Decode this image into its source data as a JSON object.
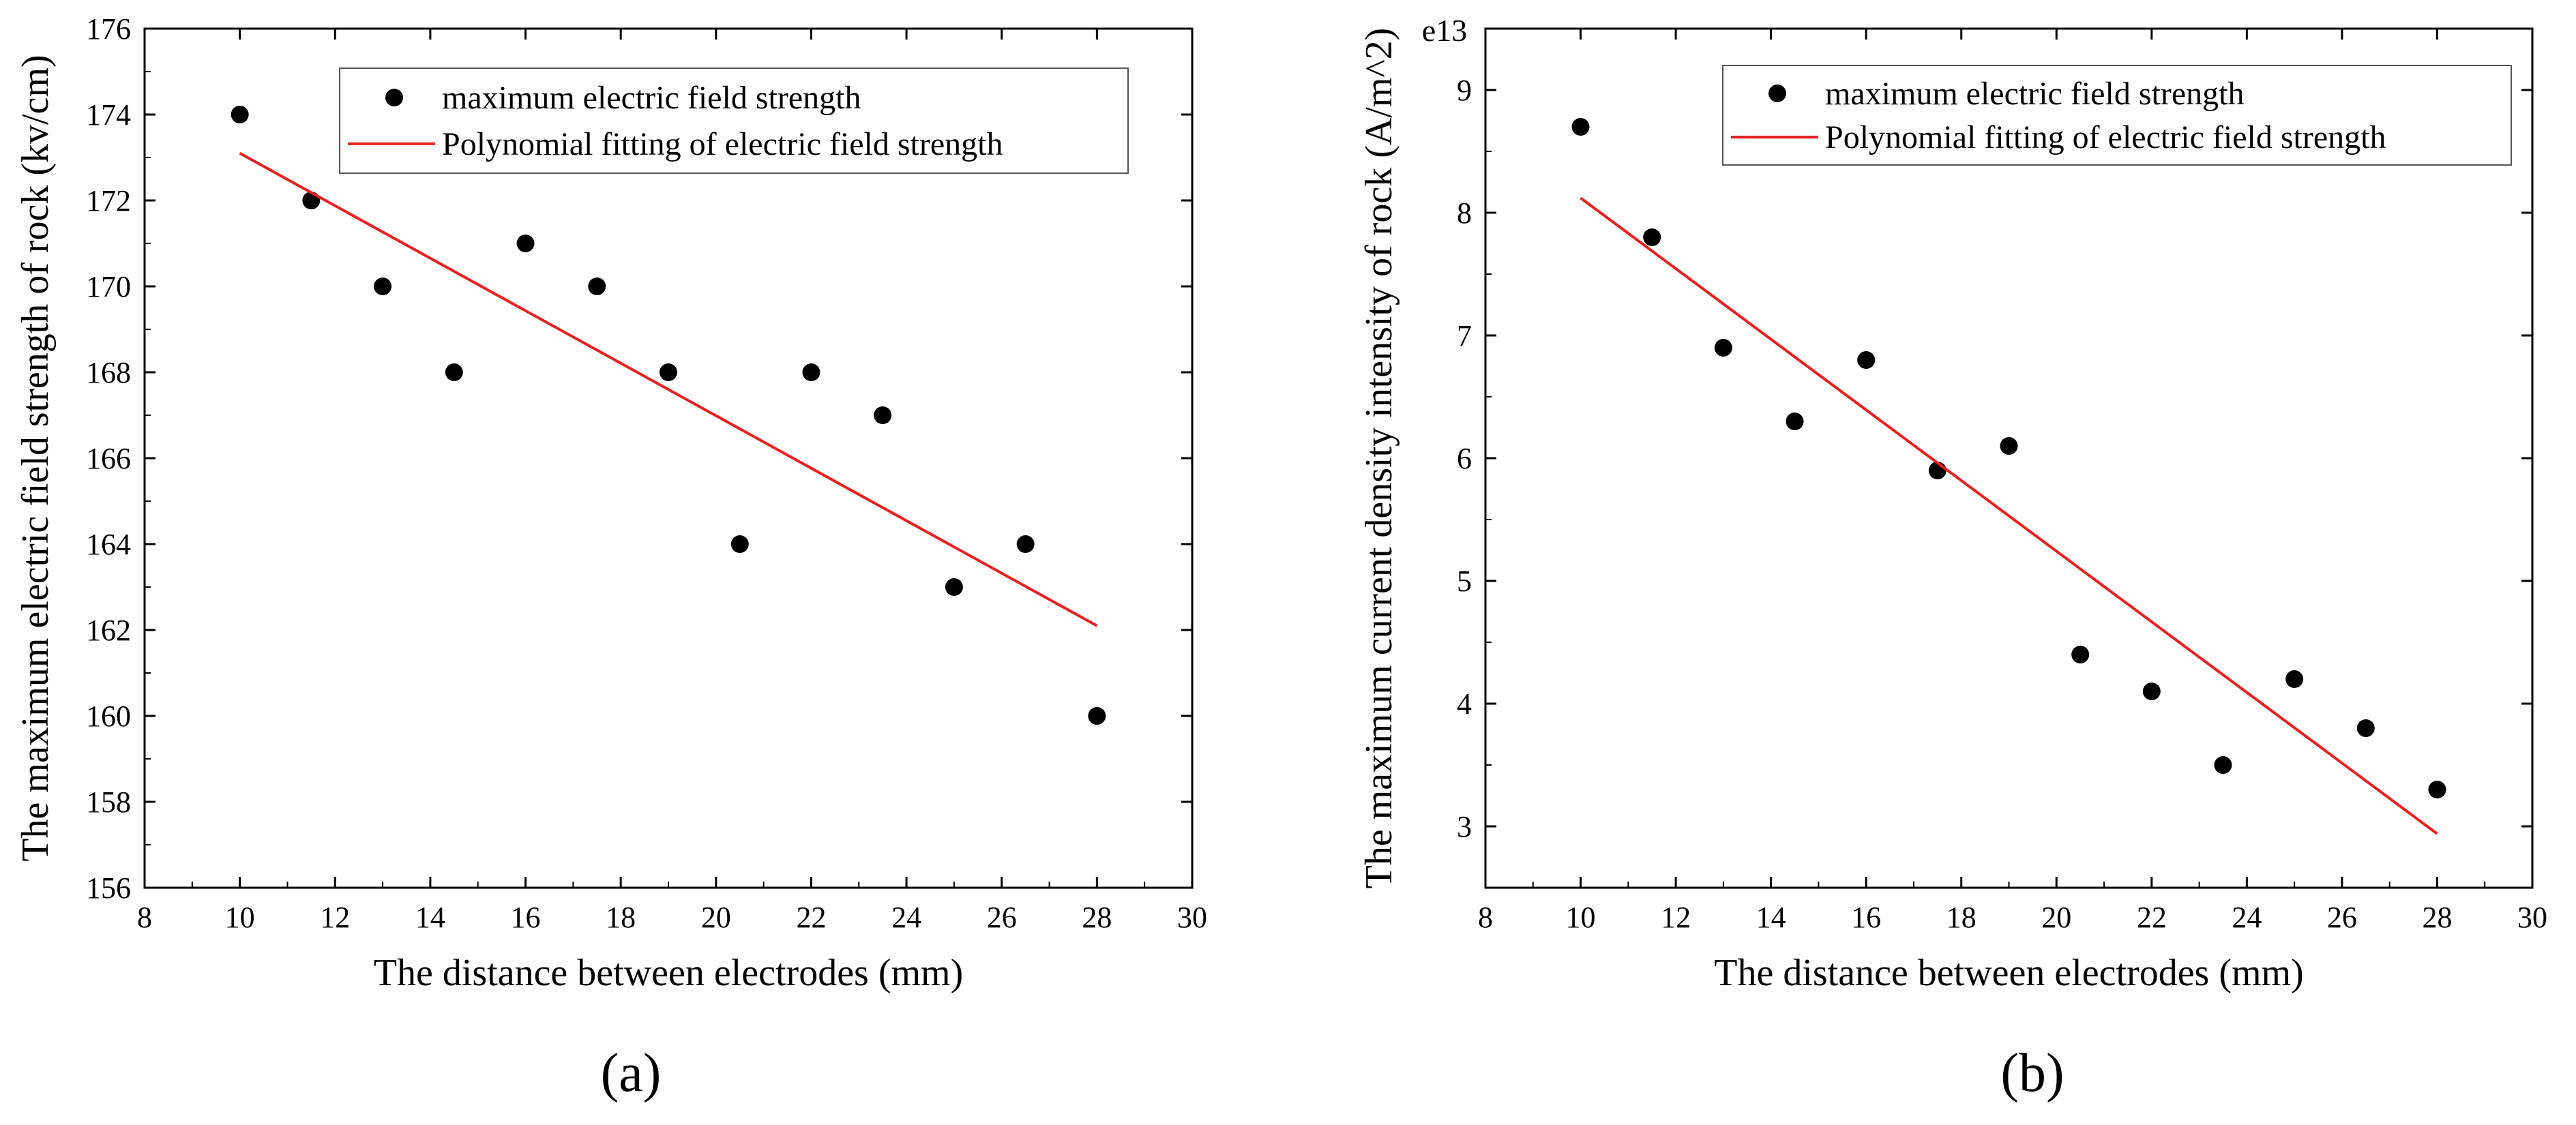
{
  "colors": {
    "point": "#000000",
    "fit_line": "#e8201e",
    "axis": "#000000",
    "background": "#ffffff"
  },
  "chart_data": [
    {
      "type": "scatter",
      "panel_label": "(a)",
      "title": "",
      "xlabel": "The distance between electrodes (mm)",
      "ylabel": "The maximum electric field strength of rock (kv/cm)",
      "exponent_label": "",
      "xlim": [
        8,
        30
      ],
      "ylim": [
        156,
        176
      ],
      "xticks": [
        8,
        10,
        12,
        14,
        16,
        18,
        20,
        22,
        24,
        26,
        28,
        30
      ],
      "xtick_labels": [
        "8",
        "10",
        "12",
        "14",
        "16",
        "18",
        "20",
        "22",
        "24",
        "26",
        "28",
        "30"
      ],
      "yticks": [
        156,
        158,
        160,
        162,
        164,
        166,
        168,
        170,
        172,
        174,
        176
      ],
      "ytick_labels": [
        "156",
        "158",
        "160",
        "162",
        "164",
        "166",
        "168",
        "170",
        "172",
        "174",
        "176"
      ],
      "legend_position": "top-right",
      "series": [
        {
          "name": "maximum electric field strength",
          "kind": "scatter",
          "x": [
            10,
            11.5,
            13,
            14.5,
            16,
            17.5,
            19,
            20.5,
            22,
            23.5,
            25,
            26.5,
            28
          ],
          "y": [
            174,
            172,
            170,
            168,
            171,
            170,
            168,
            164,
            168,
            167,
            163,
            164,
            160
          ]
        },
        {
          "name": "Polynomial fitting of electric field strength",
          "kind": "line",
          "x": [
            10,
            28
          ],
          "y": [
            173.1,
            162.1
          ]
        }
      ]
    },
    {
      "type": "scatter",
      "panel_label": "(b)",
      "title": "",
      "xlabel": "The distance between electrodes (mm)",
      "ylabel": "The maximum current density intensity of rock (A/m^2)",
      "exponent_label": "e13",
      "xlim": [
        8,
        30
      ],
      "ylim": [
        2.5,
        9.5
      ],
      "xticks": [
        8,
        10,
        12,
        14,
        16,
        18,
        20,
        22,
        24,
        26,
        28,
        30
      ],
      "xtick_labels": [
        "8",
        "10",
        "12",
        "14",
        "16",
        "18",
        "20",
        "22",
        "24",
        "26",
        "28",
        "30"
      ],
      "yticks": [
        3,
        4,
        5,
        6,
        7,
        8,
        9
      ],
      "ytick_labels": [
        "3",
        "4",
        "5",
        "6",
        "7",
        "8",
        "9"
      ],
      "legend_position": "top-right",
      "series": [
        {
          "name": "maximum electric field strength",
          "kind": "scatter",
          "x": [
            10,
            11.5,
            13,
            14.5,
            16,
            17.5,
            19,
            20.5,
            22,
            23.5,
            25,
            26.5,
            28
          ],
          "y": [
            8.7,
            7.8,
            6.9,
            6.3,
            6.8,
            5.9,
            6.1,
            4.4,
            4.1,
            3.5,
            4.2,
            3.8,
            3.3
          ]
        },
        {
          "name": "Polynomial fitting of electric field strength",
          "kind": "line",
          "x": [
            10,
            28
          ],
          "y": [
            8.12,
            2.94
          ]
        }
      ]
    }
  ]
}
